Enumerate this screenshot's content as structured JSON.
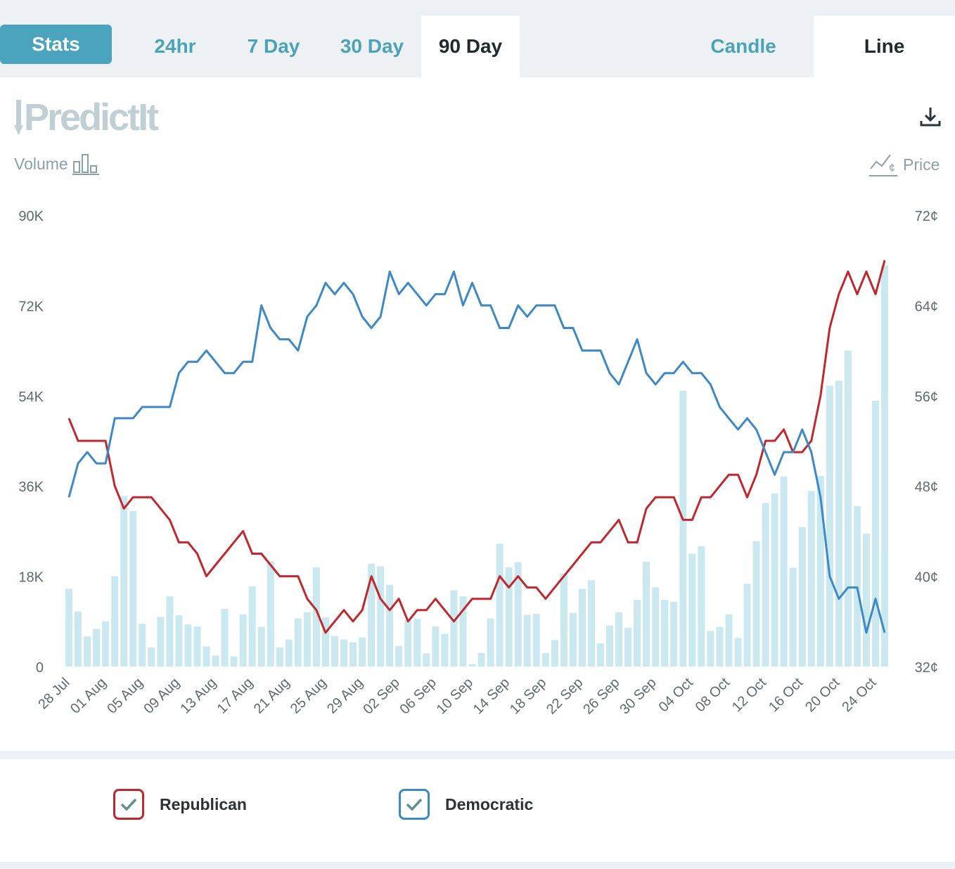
{
  "tabs": {
    "stats": "Stats",
    "range": [
      {
        "label": "24hr",
        "active": false
      },
      {
        "label": "7 Day",
        "active": false
      },
      {
        "label": "30 Day",
        "active": false
      },
      {
        "label": "90 Day",
        "active": true
      }
    ],
    "mode": [
      {
        "label": "Candle",
        "active": false
      },
      {
        "label": "Line",
        "active": true
      }
    ]
  },
  "brand": {
    "name": "PredictIt"
  },
  "axis_headers": {
    "volume": "Volume",
    "price": "Price"
  },
  "colors": {
    "accent": "#4ba4bd",
    "republican": "#c0282d",
    "democratic": "#3d88c6",
    "volume": "#c9e8ef"
  },
  "chart_data": {
    "type": "line",
    "title": "",
    "x_tick_labels": [
      "28 Jul",
      "01 Aug",
      "05 Aug",
      "09 Aug",
      "13 Aug",
      "17 Aug",
      "21 Aug",
      "25 Aug",
      "29 Aug",
      "02 Sep",
      "06 Sep",
      "10 Sep",
      "14 Sep",
      "18 Sep",
      "22 Sep",
      "26 Sep",
      "30 Sep",
      "04 Oct",
      "08 Oct",
      "12 Oct",
      "16 Oct",
      "20 Oct",
      "24 Oct"
    ],
    "y_left": {
      "label": "Volume",
      "ticks": [
        "0",
        "18K",
        "36K",
        "54K",
        "72K",
        "90K"
      ],
      "range": [
        0,
        90000
      ]
    },
    "y_right": {
      "label": "Price",
      "ticks": [
        "32¢",
        "40¢",
        "48¢",
        "56¢",
        "64¢",
        "72¢"
      ],
      "range": [
        32,
        72
      ]
    },
    "series": [
      {
        "name": "Republican",
        "color": "#c0282d",
        "unit": "cents",
        "values": [
          54,
          52,
          52,
          52,
          52,
          48,
          46,
          47,
          47,
          47,
          46,
          45,
          43,
          43,
          42,
          40,
          41,
          42,
          43,
          44,
          42,
          42,
          41,
          40,
          40,
          40,
          38,
          37,
          35,
          36,
          37,
          36,
          37,
          40,
          38,
          37,
          38,
          36,
          37,
          37,
          38,
          37,
          36,
          37,
          38,
          38,
          38,
          40,
          39,
          40,
          39,
          39,
          38,
          39,
          40,
          41,
          42,
          43,
          43,
          44,
          45,
          43,
          43,
          46,
          47,
          47,
          47,
          45,
          45,
          47,
          47,
          48,
          49,
          49,
          47,
          49,
          52,
          52,
          53,
          51,
          51,
          52,
          56,
          62,
          65,
          67,
          65,
          67,
          65,
          68
        ]
      },
      {
        "name": "Democratic",
        "color": "#3d88c6",
        "unit": "cents",
        "values": [
          47,
          50,
          51,
          50,
          50,
          54,
          54,
          54,
          55,
          55,
          55,
          55,
          58,
          59,
          59,
          60,
          59,
          58,
          58,
          59,
          59,
          64,
          62,
          61,
          61,
          60,
          63,
          64,
          66,
          65,
          66,
          65,
          63,
          62,
          63,
          67,
          65,
          66,
          65,
          64,
          65,
          65,
          67,
          64,
          66,
          64,
          64,
          62,
          62,
          64,
          63,
          64,
          64,
          64,
          62,
          62,
          60,
          60,
          60,
          58,
          57,
          59,
          61,
          58,
          57,
          58,
          58,
          59,
          58,
          58,
          57,
          55,
          54,
          53,
          54,
          53,
          51,
          49,
          51,
          51,
          53,
          51,
          47,
          40,
          38,
          39,
          39,
          35,
          38,
          35
        ]
      },
      {
        "name": "Volume",
        "color": "#c9e8ef",
        "unit": "shares",
        "values": [
          15500,
          11000,
          6000,
          7500,
          9000,
          18000,
          34000,
          31000,
          8500,
          3800,
          9900,
          14000,
          10200,
          8400,
          8000,
          4000,
          2200,
          11500,
          2000,
          10400,
          16000,
          7900,
          21000,
          3800,
          5400,
          9600,
          10800,
          19800,
          9800,
          6100,
          5400,
          4800,
          5800,
          20500,
          20000,
          16300,
          4100,
          9400,
          9500,
          2600,
          8000,
          6500,
          15200,
          14000,
          500,
          2700,
          9600,
          24500,
          19800,
          20800,
          10300,
          10500,
          2700,
          5300,
          18600,
          10700,
          15500,
          17200,
          4600,
          8200,
          10800,
          7700,
          13300,
          20900,
          15800,
          13300,
          12900,
          55000,
          22500,
          24000,
          7100,
          7900,
          10400,
          5700,
          16500,
          25000,
          32600,
          34500,
          37900,
          19700,
          27800,
          35000,
          38000,
          56000,
          57000,
          63000,
          32000,
          26500,
          53000,
          80000
        ]
      }
    ]
  },
  "legend": [
    {
      "label": "Republican",
      "color": "#c0282d"
    },
    {
      "label": "Democratic",
      "color": "#3d88c6"
    }
  ]
}
